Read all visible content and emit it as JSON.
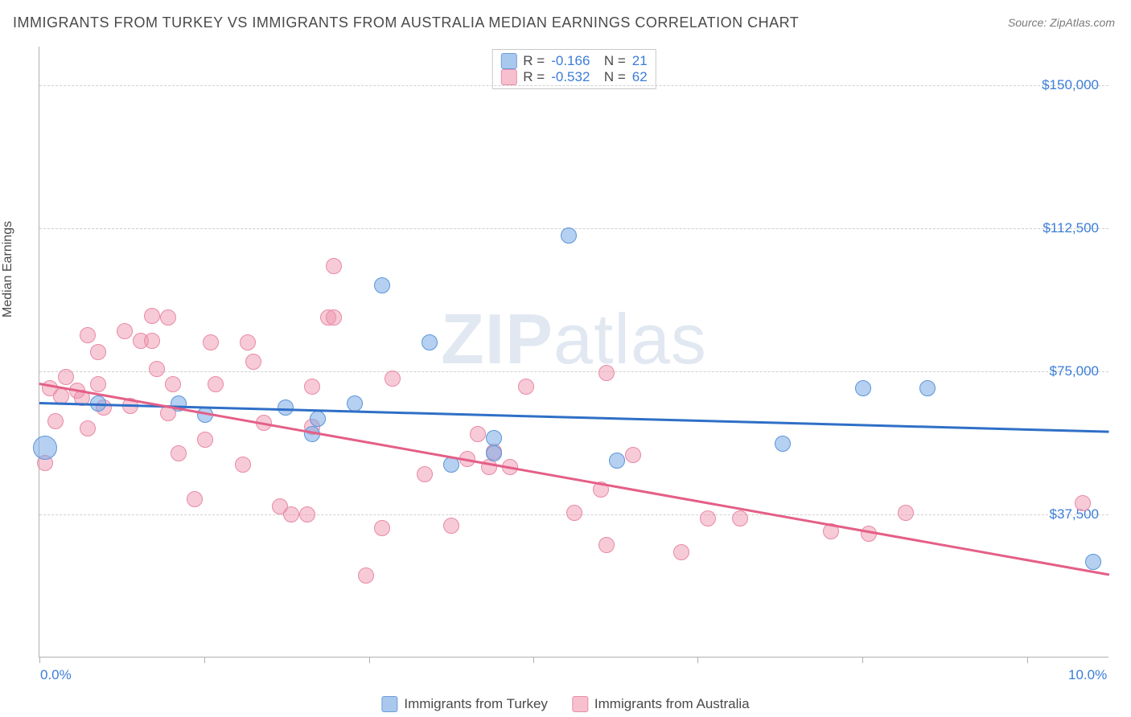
{
  "title": "IMMIGRANTS FROM TURKEY VS IMMIGRANTS FROM AUSTRALIA MEDIAN EARNINGS CORRELATION CHART",
  "source": "Source: ZipAtlas.com",
  "y_axis_label": "Median Earnings",
  "watermark_a": "ZIP",
  "watermark_b": "atlas",
  "chart": {
    "type": "scatter",
    "background_color": "#ffffff",
    "grid_color": "#d0d0d0",
    "axis_color": "#b0b0b0",
    "label_color": "#3b7dd8",
    "title_color": "#4a4a4a",
    "title_fontsize": 18,
    "label_fontsize": 17,
    "xlim": [
      0,
      10
    ],
    "ylim": [
      0,
      160000
    ],
    "y_ticks": [
      {
        "v": 37500,
        "label": "$37,500"
      },
      {
        "v": 75000,
        "label": "$75,000"
      },
      {
        "v": 112500,
        "label": "$112,500"
      },
      {
        "v": 150000,
        "label": "$150,000"
      }
    ],
    "x_tick_positions": [
      0,
      1.54,
      3.08,
      4.62,
      6.15,
      7.69,
      9.23
    ],
    "x_tick_labels": [
      {
        "v": 0,
        "label": "0.0%"
      },
      {
        "v": 10,
        "label": "10.0%"
      }
    ],
    "series": [
      {
        "name": "Immigrants from Turkey",
        "key": "turkey",
        "fill": "rgba(120,170,230,0.55)",
        "stroke": "#5a96d8",
        "line_color": "#2f6fc7",
        "swatch_fill": "#a9c8ee",
        "swatch_border": "#6c9cd6",
        "marker_radius": 10,
        "R": "-0.166",
        "N": "21",
        "trend": {
          "x1": 0,
          "y1": 67000,
          "x2": 10,
          "y2": 59500
        },
        "points": [
          {
            "x": 0.05,
            "y": 55000,
            "r": 15
          },
          {
            "x": 0.55,
            "y": 66500
          },
          {
            "x": 1.3,
            "y": 66500
          },
          {
            "x": 1.55,
            "y": 63500
          },
          {
            "x": 2.3,
            "y": 65500
          },
          {
            "x": 2.55,
            "y": 58500
          },
          {
            "x": 2.6,
            "y": 62500
          },
          {
            "x": 2.95,
            "y": 66500
          },
          {
            "x": 3.2,
            "y": 97500
          },
          {
            "x": 3.65,
            "y": 82500
          },
          {
            "x": 3.85,
            "y": 50500
          },
          {
            "x": 4.25,
            "y": 57500
          },
          {
            "x": 4.25,
            "y": 53500
          },
          {
            "x": 4.95,
            "y": 110500
          },
          {
            "x": 5.4,
            "y": 51500
          },
          {
            "x": 6.95,
            "y": 56000
          },
          {
            "x": 7.7,
            "y": 70500
          },
          {
            "x": 8.3,
            "y": 70500
          },
          {
            "x": 9.85,
            "y": 25000
          }
        ]
      },
      {
        "name": "Immigrants from Australia",
        "key": "australia",
        "fill": "rgba(240,150,175,0.5)",
        "stroke": "#e88aa5",
        "line_color": "#e45f87",
        "swatch_fill": "#f6c0cf",
        "swatch_border": "#e98ba6",
        "marker_radius": 10,
        "R": "-0.532",
        "N": "62",
        "trend": {
          "x1": 0,
          "y1": 72000,
          "x2": 10,
          "y2": 22000
        },
        "points": [
          {
            "x": 0.05,
            "y": 51000
          },
          {
            "x": 0.1,
            "y": 70500
          },
          {
            "x": 0.15,
            "y": 62000
          },
          {
            "x": 0.2,
            "y": 68500
          },
          {
            "x": 0.25,
            "y": 73500
          },
          {
            "x": 0.35,
            "y": 70000
          },
          {
            "x": 0.4,
            "y": 68000
          },
          {
            "x": 0.45,
            "y": 60000
          },
          {
            "x": 0.45,
            "y": 84500
          },
          {
            "x": 0.55,
            "y": 71500
          },
          {
            "x": 0.6,
            "y": 65500
          },
          {
            "x": 0.55,
            "y": 80000
          },
          {
            "x": 0.85,
            "y": 66000
          },
          {
            "x": 0.8,
            "y": 85500
          },
          {
            "x": 0.95,
            "y": 83000
          },
          {
            "x": 1.05,
            "y": 89500
          },
          {
            "x": 1.05,
            "y": 83000
          },
          {
            "x": 1.1,
            "y": 75500
          },
          {
            "x": 1.2,
            "y": 89000
          },
          {
            "x": 1.25,
            "y": 71500
          },
          {
            "x": 1.2,
            "y": 64000
          },
          {
            "x": 1.3,
            "y": 53500
          },
          {
            "x": 1.45,
            "y": 41500
          },
          {
            "x": 1.55,
            "y": 57000
          },
          {
            "x": 1.6,
            "y": 82500
          },
          {
            "x": 1.65,
            "y": 71500
          },
          {
            "x": 1.9,
            "y": 50500
          },
          {
            "x": 1.95,
            "y": 82500
          },
          {
            "x": 2.0,
            "y": 77500
          },
          {
            "x": 2.1,
            "y": 61500
          },
          {
            "x": 2.25,
            "y": 39500
          },
          {
            "x": 2.35,
            "y": 37500
          },
          {
            "x": 2.5,
            "y": 37500
          },
          {
            "x": 2.55,
            "y": 60500
          },
          {
            "x": 2.55,
            "y": 71000
          },
          {
            "x": 2.7,
            "y": 89000
          },
          {
            "x": 2.75,
            "y": 89000
          },
          {
            "x": 2.75,
            "y": 102500
          },
          {
            "x": 3.05,
            "y": 21500
          },
          {
            "x": 3.2,
            "y": 34000
          },
          {
            "x": 3.3,
            "y": 73000
          },
          {
            "x": 3.6,
            "y": 48000
          },
          {
            "x": 3.85,
            "y": 34500
          },
          {
            "x": 4.0,
            "y": 52000
          },
          {
            "x": 4.1,
            "y": 58500
          },
          {
            "x": 4.2,
            "y": 50000
          },
          {
            "x": 4.25,
            "y": 54000
          },
          {
            "x": 4.4,
            "y": 50000
          },
          {
            "x": 4.55,
            "y": 71000
          },
          {
            "x": 5.0,
            "y": 38000
          },
          {
            "x": 5.25,
            "y": 44000
          },
          {
            "x": 5.3,
            "y": 74500
          },
          {
            "x": 5.3,
            "y": 29500
          },
          {
            "x": 5.55,
            "y": 53000
          },
          {
            "x": 6.0,
            "y": 27500
          },
          {
            "x": 6.25,
            "y": 36500
          },
          {
            "x": 6.55,
            "y": 36500
          },
          {
            "x": 7.4,
            "y": 33000
          },
          {
            "x": 7.75,
            "y": 32500
          },
          {
            "x": 8.1,
            "y": 38000
          },
          {
            "x": 9.75,
            "y": 40500
          }
        ]
      }
    ]
  }
}
